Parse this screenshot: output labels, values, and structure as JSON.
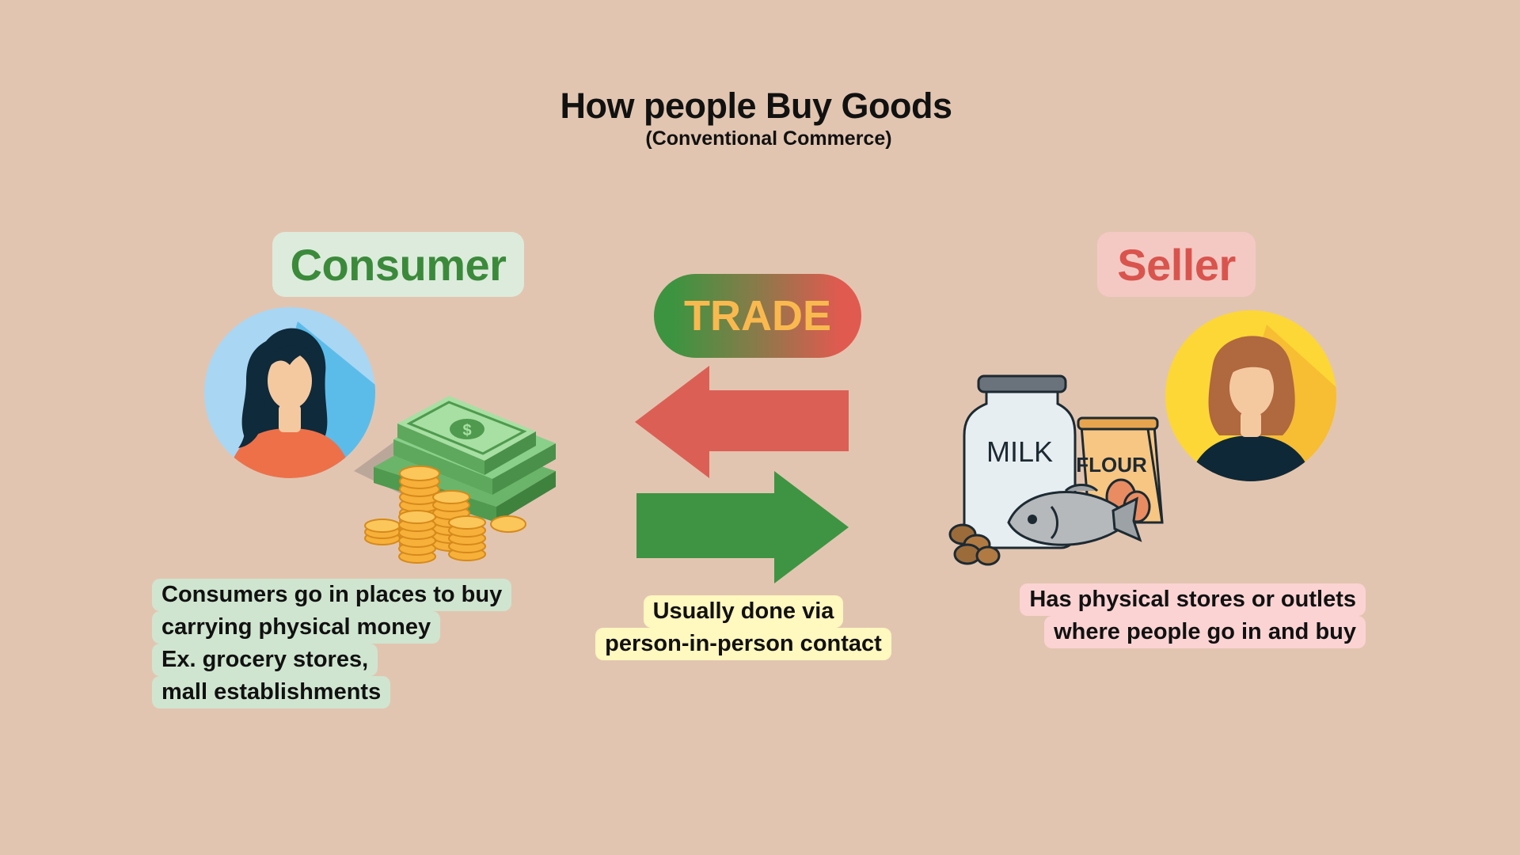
{
  "title": "How people Buy Goods",
  "subtitle": "(Conventional Commerce)",
  "consumer": {
    "label": "Consumer",
    "caption": [
      "Consumers go in places to buy",
      "carrying physical money",
      "Ex. grocery stores,",
      "mall establishments"
    ]
  },
  "seller": {
    "label": "Seller",
    "caption": [
      "Has physical stores or outlets",
      "where people go in and buy"
    ]
  },
  "trade": {
    "label": "TRADE",
    "caption": [
      "Usually done via",
      "person-in-person contact"
    ]
  },
  "goods": {
    "milk_label": "MILK",
    "flour_label": "FLOUR",
    "money_symbol": "$"
  },
  "colors": {
    "background": "#e2c5b0",
    "consumer_green": "#3b8a3b",
    "seller_red": "#d9544d",
    "arrow_red": "#dc5f55",
    "arrow_green": "#3e9442",
    "trade_text": "#f9b94f"
  },
  "icons": [
    "consumer-avatar-icon",
    "seller-avatar-icon",
    "money-stack-icon",
    "coins-icon",
    "milk-jar-icon",
    "flour-bag-icon",
    "eggs-icon",
    "fish-icon",
    "bread-icon",
    "left-arrow-icon",
    "right-arrow-icon"
  ]
}
